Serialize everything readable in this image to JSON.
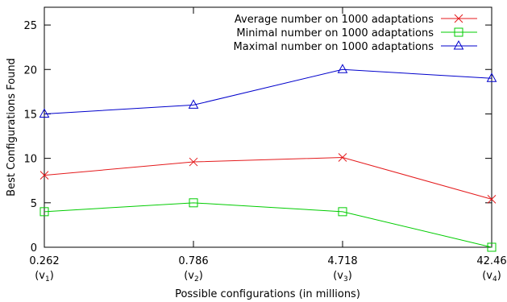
{
  "chart_data": {
    "type": "line",
    "xlabel": "Possible configurations (in millions)",
    "ylabel": "Best Configurations Found",
    "ylim": [
      0,
      27
    ],
    "yticks": [
      0,
      5,
      10,
      15,
      20,
      25
    ],
    "categories": [
      {
        "value": "0.262",
        "sub_base": "(v",
        "sub_index": "1",
        "sub_close": ")"
      },
      {
        "value": "0.786",
        "sub_base": "(v",
        "sub_index": "2",
        "sub_close": ")"
      },
      {
        "value": "4.718",
        "sub_base": "(v",
        "sub_index": "3",
        "sub_close": ")"
      },
      {
        "value": "42.46",
        "sub_base": "(v",
        "sub_index": "4",
        "sub_close": ")"
      }
    ],
    "legend_position": "top-right",
    "grid": false,
    "series": [
      {
        "name": "Average number on 1000 adaptations",
        "color": "#e41a1c",
        "marker": "x",
        "values": [
          8.1,
          9.6,
          10.1,
          5.4
        ]
      },
      {
        "name": "Minimal number on 1000 adaptations",
        "color": "#00cc00",
        "marker": "square",
        "values": [
          4.0,
          5.0,
          4.0,
          0.0
        ]
      },
      {
        "name": "Maximal number on 1000 adaptations",
        "color": "#0000cc",
        "marker": "triangle",
        "values": [
          15.0,
          16.0,
          20.0,
          19.0
        ]
      }
    ]
  }
}
